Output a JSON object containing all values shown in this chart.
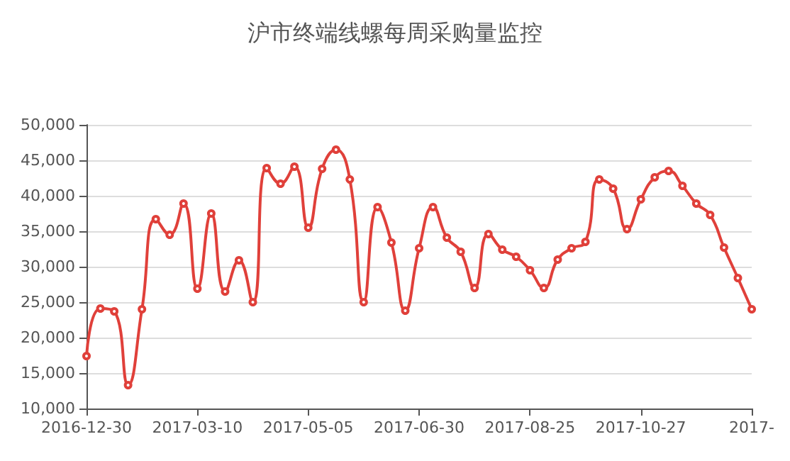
{
  "chart_data": {
    "type": "line",
    "title": "沪市终端线螺每周采购量监控",
    "categories": [
      "2016-12-30",
      null,
      null,
      null,
      null,
      null,
      null,
      null,
      "2017-03-10",
      null,
      null,
      null,
      null,
      null,
      null,
      null,
      "2017-05-05",
      null,
      null,
      null,
      null,
      null,
      null,
      null,
      "2017-06-30",
      null,
      null,
      null,
      null,
      null,
      null,
      null,
      "2017-08-25",
      null,
      null,
      null,
      null,
      null,
      null,
      null,
      "2017-10-27",
      null,
      null,
      null,
      null,
      null,
      null,
      null,
      "2017-"
    ],
    "series": [
      {
        "color": "#e0403a",
        "values": [
          17400,
          24100,
          23700,
          13300,
          24000,
          36700,
          34500,
          38900,
          26900,
          37500,
          26500,
          30900,
          25000,
          43900,
          41700,
          44100,
          35500,
          43800,
          46500,
          42300,
          25000,
          38400,
          33400,
          23800,
          32600,
          38400,
          34100,
          32100,
          27000,
          34600,
          32400,
          31400,
          29500,
          27000,
          31000,
          32600,
          33500,
          42300,
          41000,
          35300,
          39500,
          42600,
          43500,
          41400,
          38900,
          37300,
          32700,
          28400,
          24000
        ]
      }
    ],
    "ylim": [
      10000,
      50000
    ],
    "yticks": [
      {
        "value": 10000,
        "label": "10,000"
      },
      {
        "value": 15000,
        "label": "15,000"
      },
      {
        "value": 20000,
        "label": "20,000"
      },
      {
        "value": 25000,
        "label": "25,000"
      },
      {
        "value": 30000,
        "label": "30,000"
      },
      {
        "value": 35000,
        "label": "35,000"
      },
      {
        "value": 40000,
        "label": "40,000"
      },
      {
        "value": 45000,
        "label": "45,000"
      },
      {
        "value": 50000,
        "label": "50,000"
      }
    ],
    "grid": "y",
    "marker": "circle",
    "line_style": "solid"
  }
}
